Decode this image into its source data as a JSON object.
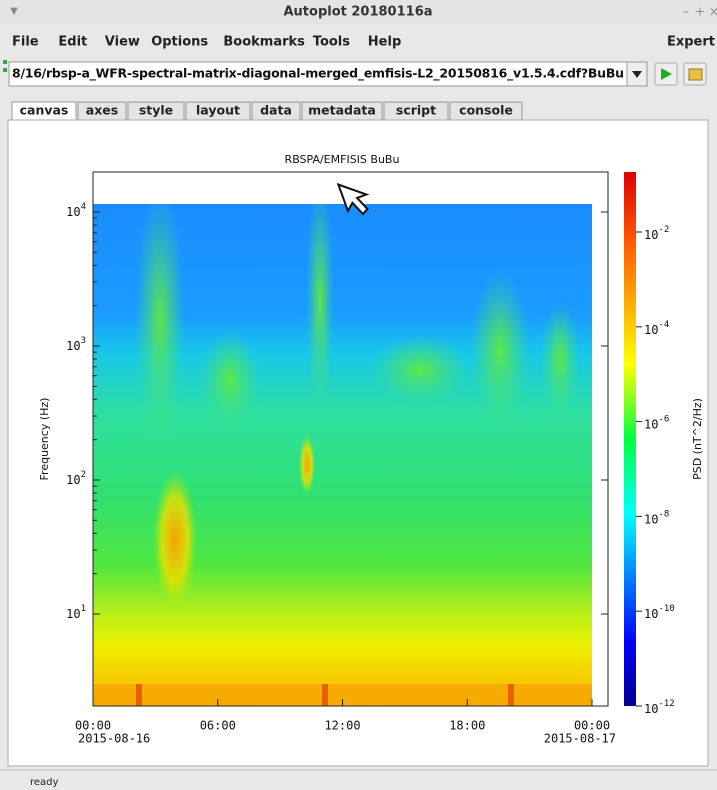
{
  "window": {
    "title": "Autoplot 20180116a",
    "controls": [
      "–",
      "+",
      "×"
    ]
  },
  "menu": [
    "File",
    "Edit",
    "View",
    "Options",
    "Bookmarks",
    "Tools",
    "Help"
  ],
  "menu_right": "Expert",
  "uri": "8/16/rbsp-a_WFR-spectral-matrix-diagonal-merged_emfisis-L2_20150816_v1.5.4.cdf?BuBu",
  "tabs": [
    "canvas",
    "axes",
    "style",
    "layout",
    "data",
    "metadata",
    "script",
    "console"
  ],
  "plot": {
    "title": "RBSPA/EMFISIS  BuBu",
    "ylabel": "Frequency (Hz)",
    "zlabel": "PSD (nT^2/Hz)",
    "yticks": [
      {
        "base": "10",
        "exp": "1"
      },
      {
        "base": "10",
        "exp": "2"
      },
      {
        "base": "10",
        "exp": "3"
      },
      {
        "base": "10",
        "exp": "4"
      }
    ],
    "xticks": [
      {
        "time": "00:00",
        "date": "2015-08-16"
      },
      {
        "time": "06:00"
      },
      {
        "time": "12:00"
      },
      {
        "time": "18:00"
      },
      {
        "time": "00:00",
        "date": "2015-08-17"
      }
    ],
    "zticks": [
      {
        "base": "10",
        "exp": "-2"
      },
      {
        "base": "10",
        "exp": "-4"
      },
      {
        "base": "10",
        "exp": "-6"
      },
      {
        "base": "10",
        "exp": "-8"
      },
      {
        "base": "10",
        "exp": "-10"
      },
      {
        "base": "10",
        "exp": "-12"
      }
    ]
  },
  "status": "ready"
}
